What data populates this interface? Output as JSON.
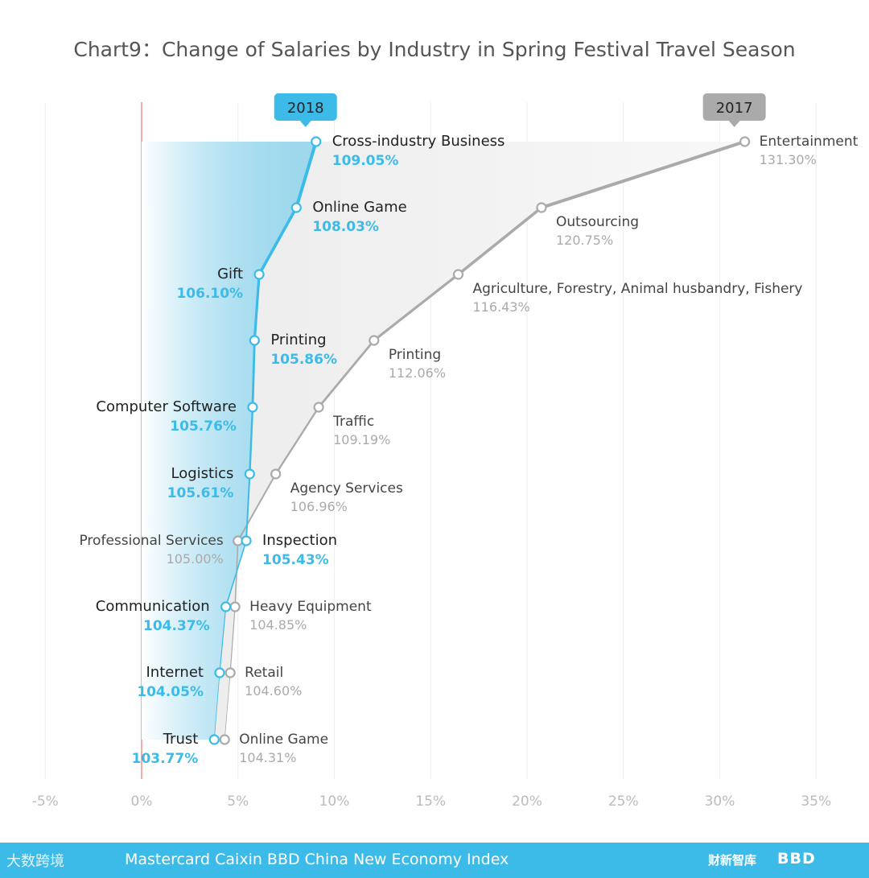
{
  "chart_data": {
    "type": "line",
    "title": "Chart9：Change of Salaries by Industry in Spring Festival Travel Season",
    "xlim": [
      -5,
      35
    ],
    "x_ticks": [
      -5,
      0,
      5,
      10,
      15,
      20,
      25,
      30,
      35
    ],
    "x_tick_labels": [
      "-5%",
      "0%",
      "5%",
      "10%",
      "15%",
      "20%",
      "25%",
      "30%",
      "35%"
    ],
    "series": [
      {
        "name": "2018",
        "color": "#3dbbe8",
        "points": [
          {
            "industry": "Cross-industry Business",
            "label": "109.05%",
            "growth": 9.05
          },
          {
            "industry": "Online Game",
            "label": "108.03%",
            "growth": 8.03
          },
          {
            "industry": "Gift",
            "label": "106.10%",
            "growth": 6.1
          },
          {
            "industry": "Printing",
            "label": "105.86%",
            "growth": 5.86
          },
          {
            "industry": "Computer Software",
            "label": "105.76%",
            "growth": 5.76
          },
          {
            "industry": "Logistics",
            "label": "105.61%",
            "growth": 5.61
          },
          {
            "industry": "Inspection",
            "label": "105.43%",
            "growth": 5.43
          },
          {
            "industry": "Communication",
            "label": "104.37%",
            "growth": 4.37
          },
          {
            "industry": "Internet",
            "label": "104.05%",
            "growth": 4.05
          },
          {
            "industry": "Trust",
            "label": "103.77%",
            "growth": 3.77
          }
        ]
      },
      {
        "name": "2017",
        "color": "#aaaaaa",
        "points": [
          {
            "industry": "Entertainment",
            "label": "131.30%",
            "growth": 31.3
          },
          {
            "industry": "Outsourcing",
            "label": "120.75%",
            "growth": 20.75
          },
          {
            "industry": "Agriculture, Forestry, Animal husbandry, Fishery",
            "label": "116.43%",
            "growth": 16.43
          },
          {
            "industry": "Printing",
            "label": "112.06%",
            "growth": 12.06
          },
          {
            "industry": "Traffic",
            "label": "109.19%",
            "growth": 9.19
          },
          {
            "industry": "Agency Services",
            "label": "106.96%",
            "growth": 6.96
          },
          {
            "industry": "Professional Services",
            "label": "105.00%",
            "growth": 5.0
          },
          {
            "industry": "Heavy Equipment",
            "label": "104.85%",
            "growth": 4.85
          },
          {
            "industry": "Retail",
            "label": "104.60%",
            "growth": 4.6
          },
          {
            "industry": "Online Game",
            "label": "104.31%",
            "growth": 4.31
          }
        ]
      }
    ]
  },
  "footer": {
    "logo_left": "大数跨境",
    "text": "Mastercard Caixin BBD China New Economy Index",
    "logo_right_1": "财新智库",
    "logo_right_2": "BBD"
  }
}
